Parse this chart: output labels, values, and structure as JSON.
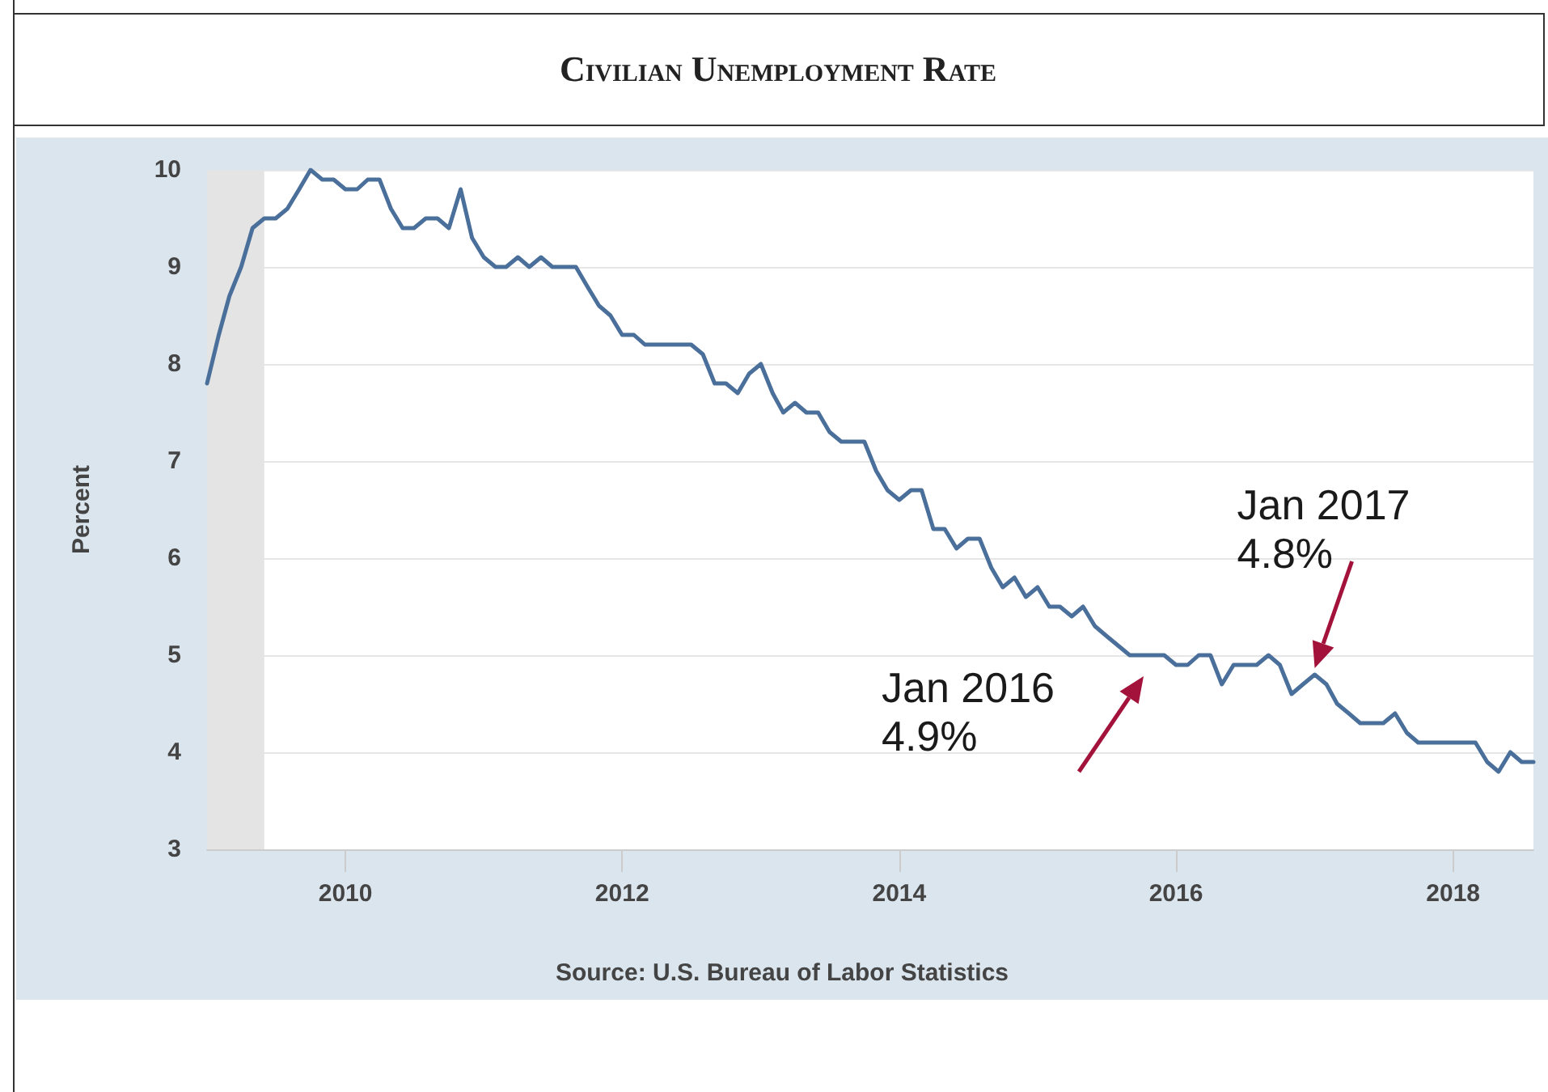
{
  "chart_data": {
    "type": "line",
    "title": "Civilian Unemployment Rate",
    "ylabel": "Percent",
    "annotations": [
      "Source: U.S. Bureau of Labor Statistics",
      "Jan 2016\n4.9%",
      {
        "text": "Jan 2017\n4.8%",
        "x": "2017-01",
        "y": 4.8
      }
    ],
    "x": [
      "2009-01",
      "2009-02",
      "2009-03",
      "2009-04",
      "2009-05",
      "2009-06",
      "2009-07",
      "2009-08",
      "2009-09",
      "2009-10",
      "2009-11",
      "2009-12",
      "2010-01",
      "2010-02",
      "2010-03",
      "2010-04",
      "2010-05",
      "2010-06",
      "2010-07",
      "2010-08",
      "2010-09",
      "2010-10",
      "2010-11",
      "2010-12",
      "2011-01",
      "2011-02",
      "2011-03",
      "2011-04",
      "2011-05",
      "2011-06",
      "2011-07",
      "2011-08",
      "2011-09",
      "2011-10",
      "2011-11",
      "2011-12",
      "2012-01",
      "2012-02",
      "2012-03",
      "2012-04",
      "2012-05",
      "2012-06",
      "2012-07",
      "2012-08",
      "2012-09",
      "2012-10",
      "2012-11",
      "2012-12",
      "2013-01",
      "2013-02",
      "2013-03",
      "2013-04",
      "2013-05",
      "2013-06",
      "2013-07",
      "2013-08",
      "2013-09",
      "2013-10",
      "2013-11",
      "2013-12",
      "2014-01",
      "2014-02",
      "2014-03",
      "2014-04",
      "2014-05",
      "2014-06",
      "2014-07",
      "2014-08",
      "2014-09",
      "2014-10",
      "2014-11",
      "2014-12",
      "2015-01",
      "2015-02",
      "2015-03",
      "2015-04",
      "2015-05",
      "2015-06",
      "2015-07",
      "2015-08",
      "2015-09",
      "2015-10",
      "2015-11",
      "2015-12",
      "2016-01",
      "2016-02",
      "2016-03",
      "2016-04",
      "2016-05",
      "2016-06",
      "2016-07",
      "2016-08",
      "2016-09",
      "2016-10",
      "2016-11",
      "2016-12",
      "2017-01",
      "2017-02",
      "2017-03",
      "2017-04",
      "2017-05",
      "2017-06",
      "2017-07",
      "2017-08",
      "2017-09",
      "2017-10",
      "2017-11",
      "2017-12",
      "2018-01",
      "2018-02",
      "2018-03",
      "2018-04",
      "2018-05",
      "2018-06",
      "2018-07",
      "2018-08"
    ],
    "series": [
      {
        "color": "#4a6f9a",
        "values": [
          7.8,
          8.3,
          8.7,
          9.0,
          9.4,
          9.5,
          9.5,
          9.6,
          9.8,
          10.0,
          9.9,
          9.9,
          9.8,
          9.8,
          9.9,
          9.9,
          9.6,
          9.4,
          9.4,
          9.5,
          9.5,
          9.4,
          9.8,
          9.3,
          9.1,
          9.0,
          9.0,
          9.1,
          9.0,
          9.1,
          9.0,
          9.0,
          9.0,
          8.8,
          8.6,
          8.5,
          8.3,
          8.3,
          8.2,
          8.2,
          8.2,
          8.2,
          8.2,
          8.1,
          7.8,
          7.8,
          7.7,
          7.9,
          8.0,
          7.7,
          7.5,
          7.6,
          7.5,
          7.5,
          7.3,
          7.2,
          7.2,
          7.2,
          6.9,
          6.7,
          6.6,
          6.7,
          6.7,
          6.3,
          6.3,
          6.1,
          6.2,
          6.2,
          5.9,
          5.7,
          5.8,
          5.6,
          5.7,
          5.5,
          5.5,
          5.4,
          5.5,
          5.3,
          5.2,
          5.1,
          5.0,
          5.0,
          5.0,
          5.0,
          4.9,
          4.9,
          5.0,
          5.0,
          4.7,
          4.9,
          4.9,
          4.9,
          5.0,
          4.9,
          4.6,
          4.7,
          4.8,
          4.7,
          4.5,
          4.4,
          4.3,
          4.3,
          4.3,
          4.4,
          4.2,
          4.1,
          4.1,
          4.1,
          4.1,
          4.1,
          4.1,
          3.9,
          3.8,
          4.0,
          3.9,
          3.9
        ]
      }
    ],
    "xlim": [
      "2009-01",
      "2018-08"
    ],
    "xticks": [
      "2010",
      "2012",
      "2014",
      "2016",
      "2018"
    ],
    "ylim": [
      3,
      10
    ],
    "yticks": [
      3,
      4,
      5,
      6,
      7,
      8,
      9,
      10
    ],
    "bands": [
      {
        "axis": "x",
        "from": "2009-01",
        "to": "2009-06",
        "color": "#e4e4e4"
      }
    ],
    "grid": "y",
    "marker": "none",
    "line_style": "solid"
  }
}
